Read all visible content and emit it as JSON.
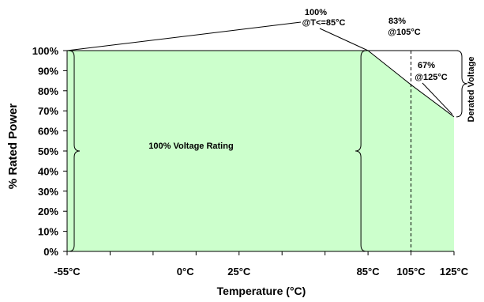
{
  "chart_data": {
    "type": "area",
    "title": "",
    "xlabel": "Temperature (°C)",
    "ylabel": "% Rated Power",
    "x_tick_labels": [
      "-55°C",
      "0°C",
      "25°C",
      "85°C",
      "105°C",
      "125°C"
    ],
    "x_tick_values": [
      -55,
      0,
      25,
      85,
      105,
      125
    ],
    "y_tick_labels": [
      "0%",
      "10%",
      "20%",
      "30%",
      "40%",
      "50%",
      "60%",
      "70%",
      "80%",
      "90%",
      "100%"
    ],
    "y_tick_values": [
      0,
      10,
      20,
      30,
      40,
      50,
      60,
      70,
      80,
      90,
      100
    ],
    "xlim": [
      -55,
      125
    ],
    "ylim": [
      0,
      100
    ],
    "grid": false,
    "series": [
      {
        "x": [
          -55,
          85,
          105,
          125
        ],
        "y": [
          100,
          100,
          83,
          67
        ],
        "color": "#ccffcc"
      }
    ],
    "annotations": {
      "point_100": {
        "line1": "100%",
        "line2": "@T<=85°C",
        "x": 85,
        "y": 100
      },
      "point_83": {
        "line1": "83%",
        "line2": "@105°C",
        "x": 105,
        "y": 83
      },
      "point_67": {
        "line1": "67%",
        "line2": "@125°C",
        "x": 125,
        "y": 67
      }
    },
    "region_label": "100% Voltage Rating",
    "derated_label": "Derated Voltage",
    "reference_line_x": 105
  }
}
